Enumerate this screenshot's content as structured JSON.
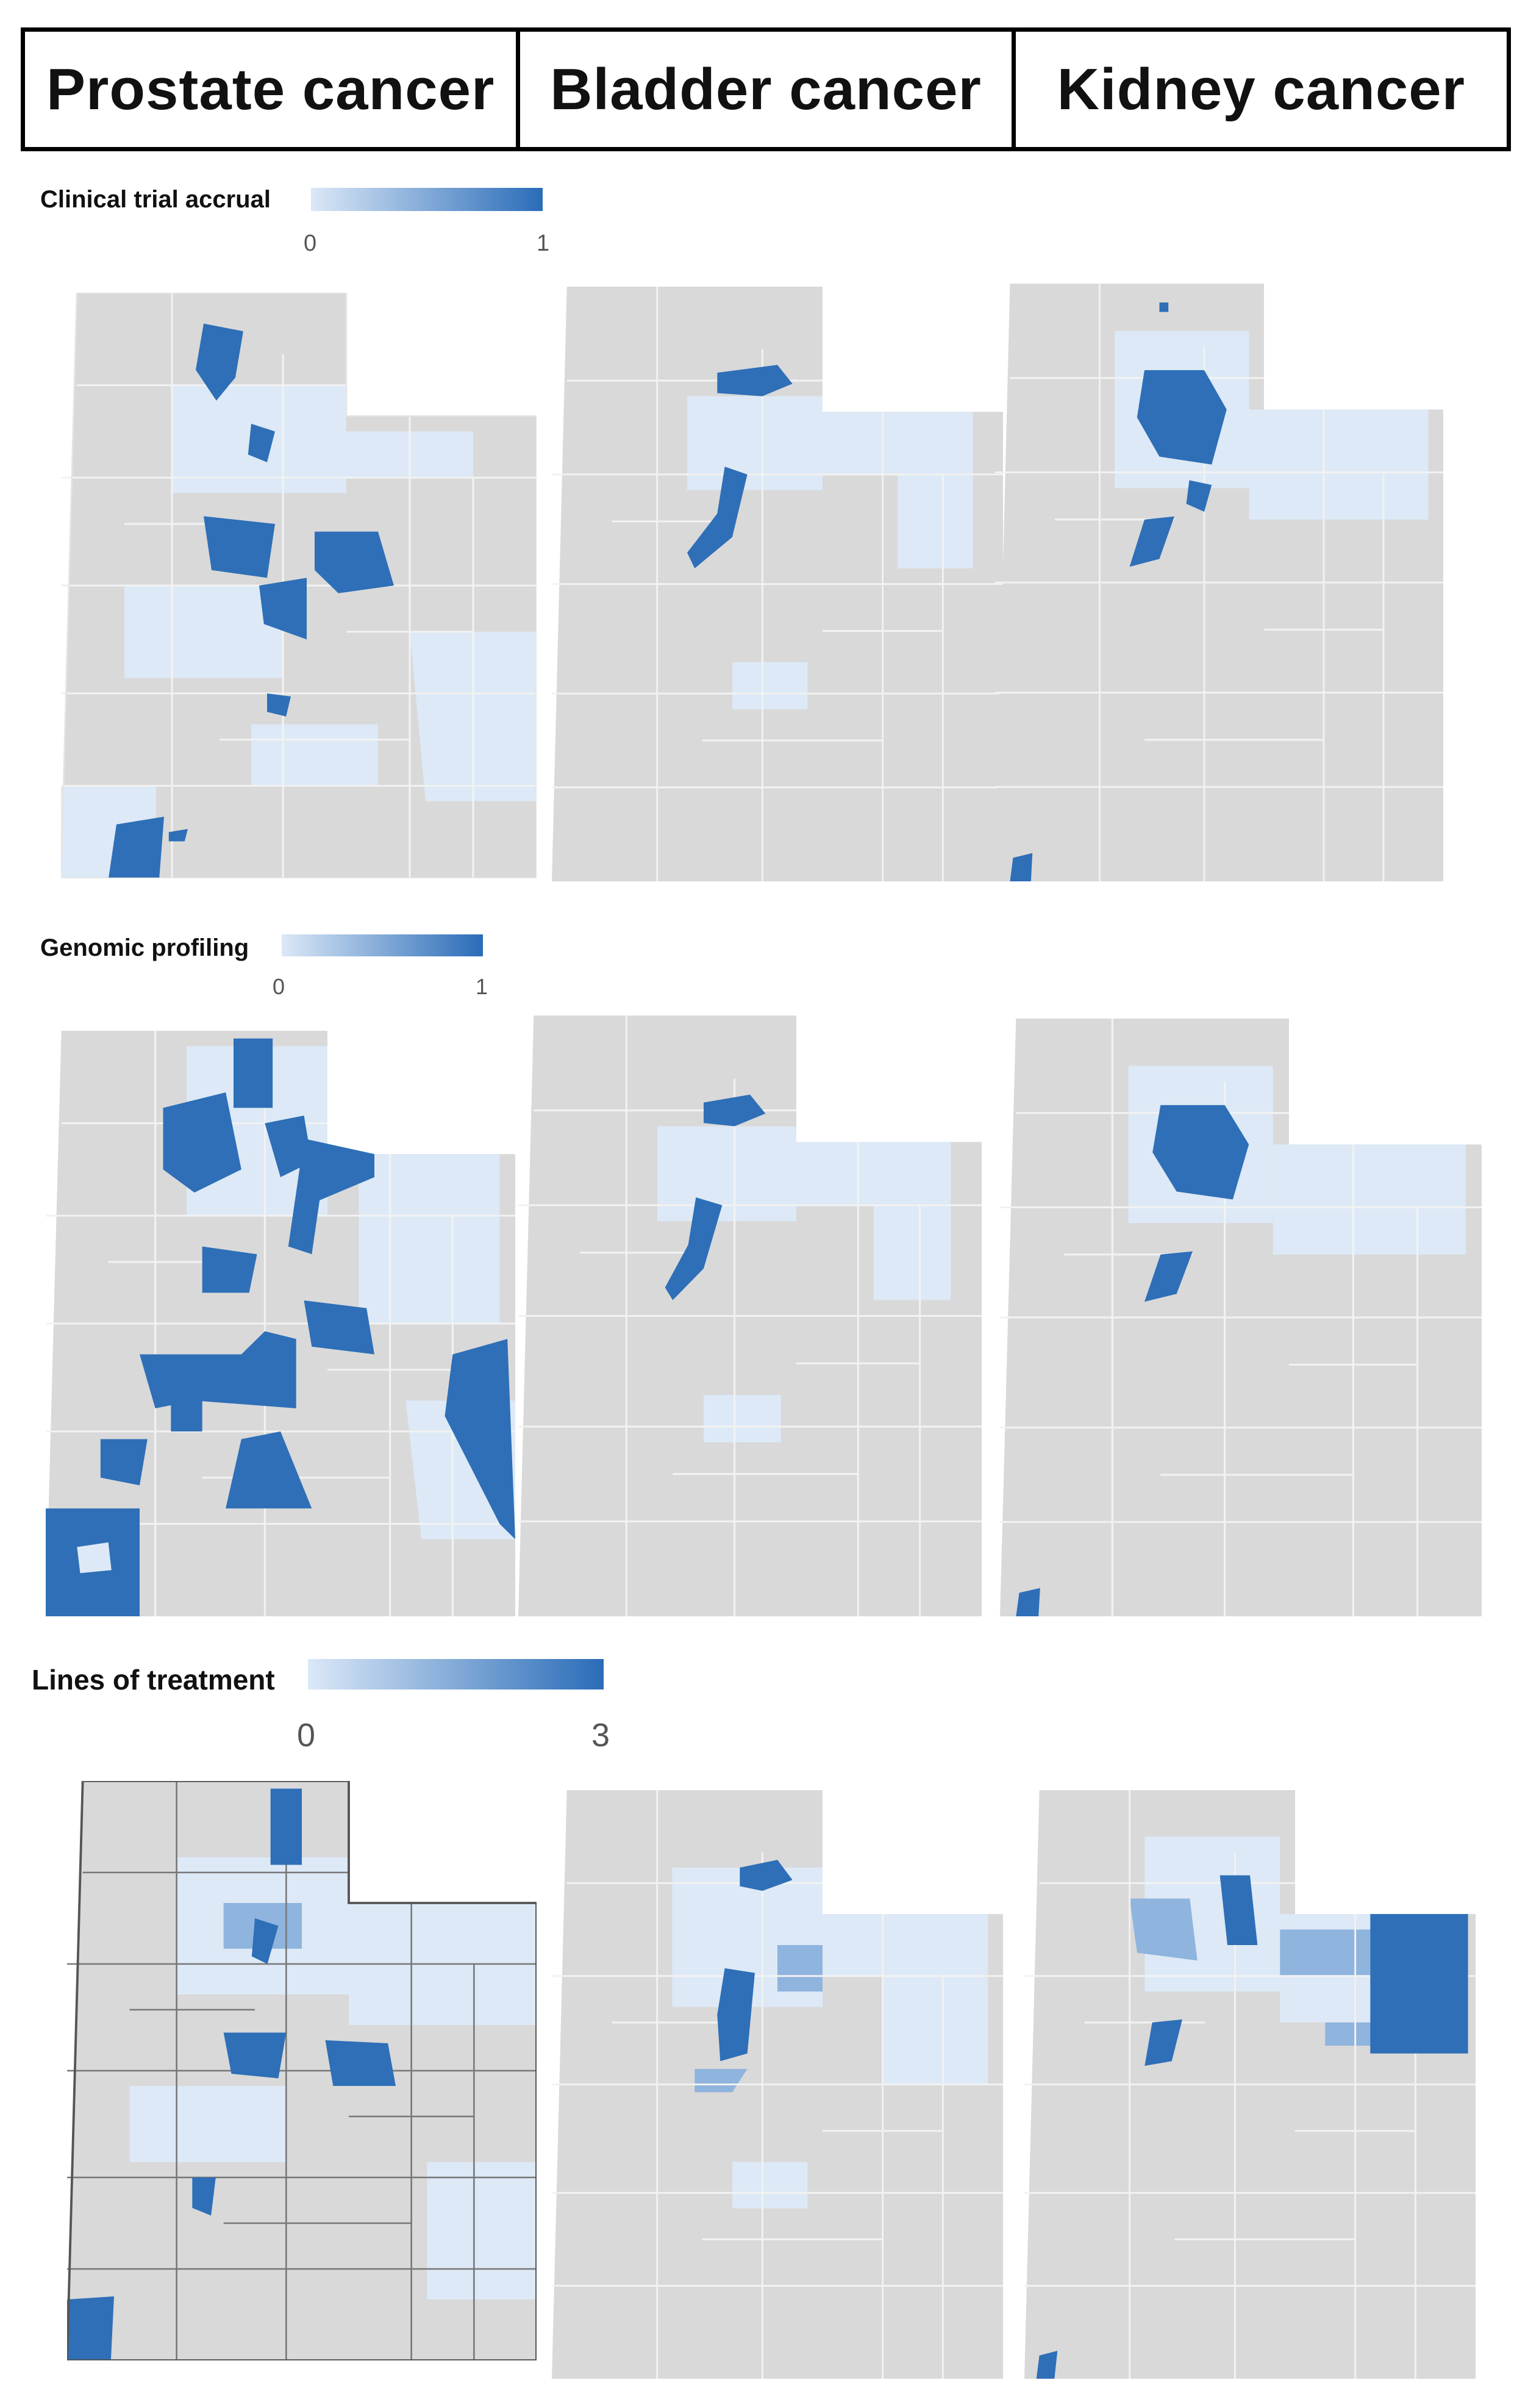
{
  "header": {
    "columns": [
      "Prostate cancer",
      "Bladder cancer",
      "Kidney cancer"
    ]
  },
  "rows": [
    {
      "title": "Clinical trial accrual",
      "scale_min": "0",
      "scale_max": "1"
    },
    {
      "title": "Genomic profiling",
      "scale_min": "0",
      "scale_max": "1"
    },
    {
      "title": "Lines of treatment",
      "scale_min": "0",
      "scale_max": "3"
    }
  ],
  "colors": {
    "background_gray": "#d9d9d9",
    "boundary": "#f2f2f2",
    "dark_blue": "#2e6fb7",
    "mid_blue": "#8fb4de",
    "light_blue": "#dde9f6",
    "legend_low": "#dbe8f7",
    "legend_high": "#2a6cb8"
  },
  "map_region": "Utah"
}
